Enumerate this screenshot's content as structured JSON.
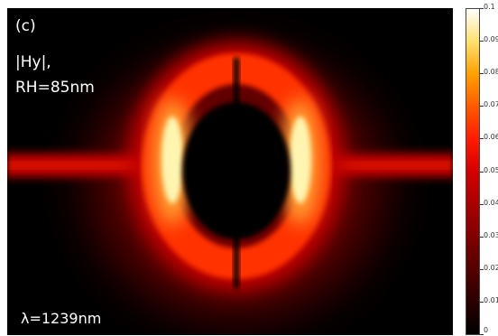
{
  "panel_label": "(c)",
  "field_label": "|Hy|,",
  "radius_label": "RH=85nm",
  "lambda_label": "λ=1239nm",
  "colorbar": {
    "ticks": [
      "0.1",
      "0.09",
      "0.08",
      "0.07",
      "0.06",
      "0.05",
      "0.04",
      "0.03",
      "0.02",
      "0.01",
      "0"
    ]
  }
}
